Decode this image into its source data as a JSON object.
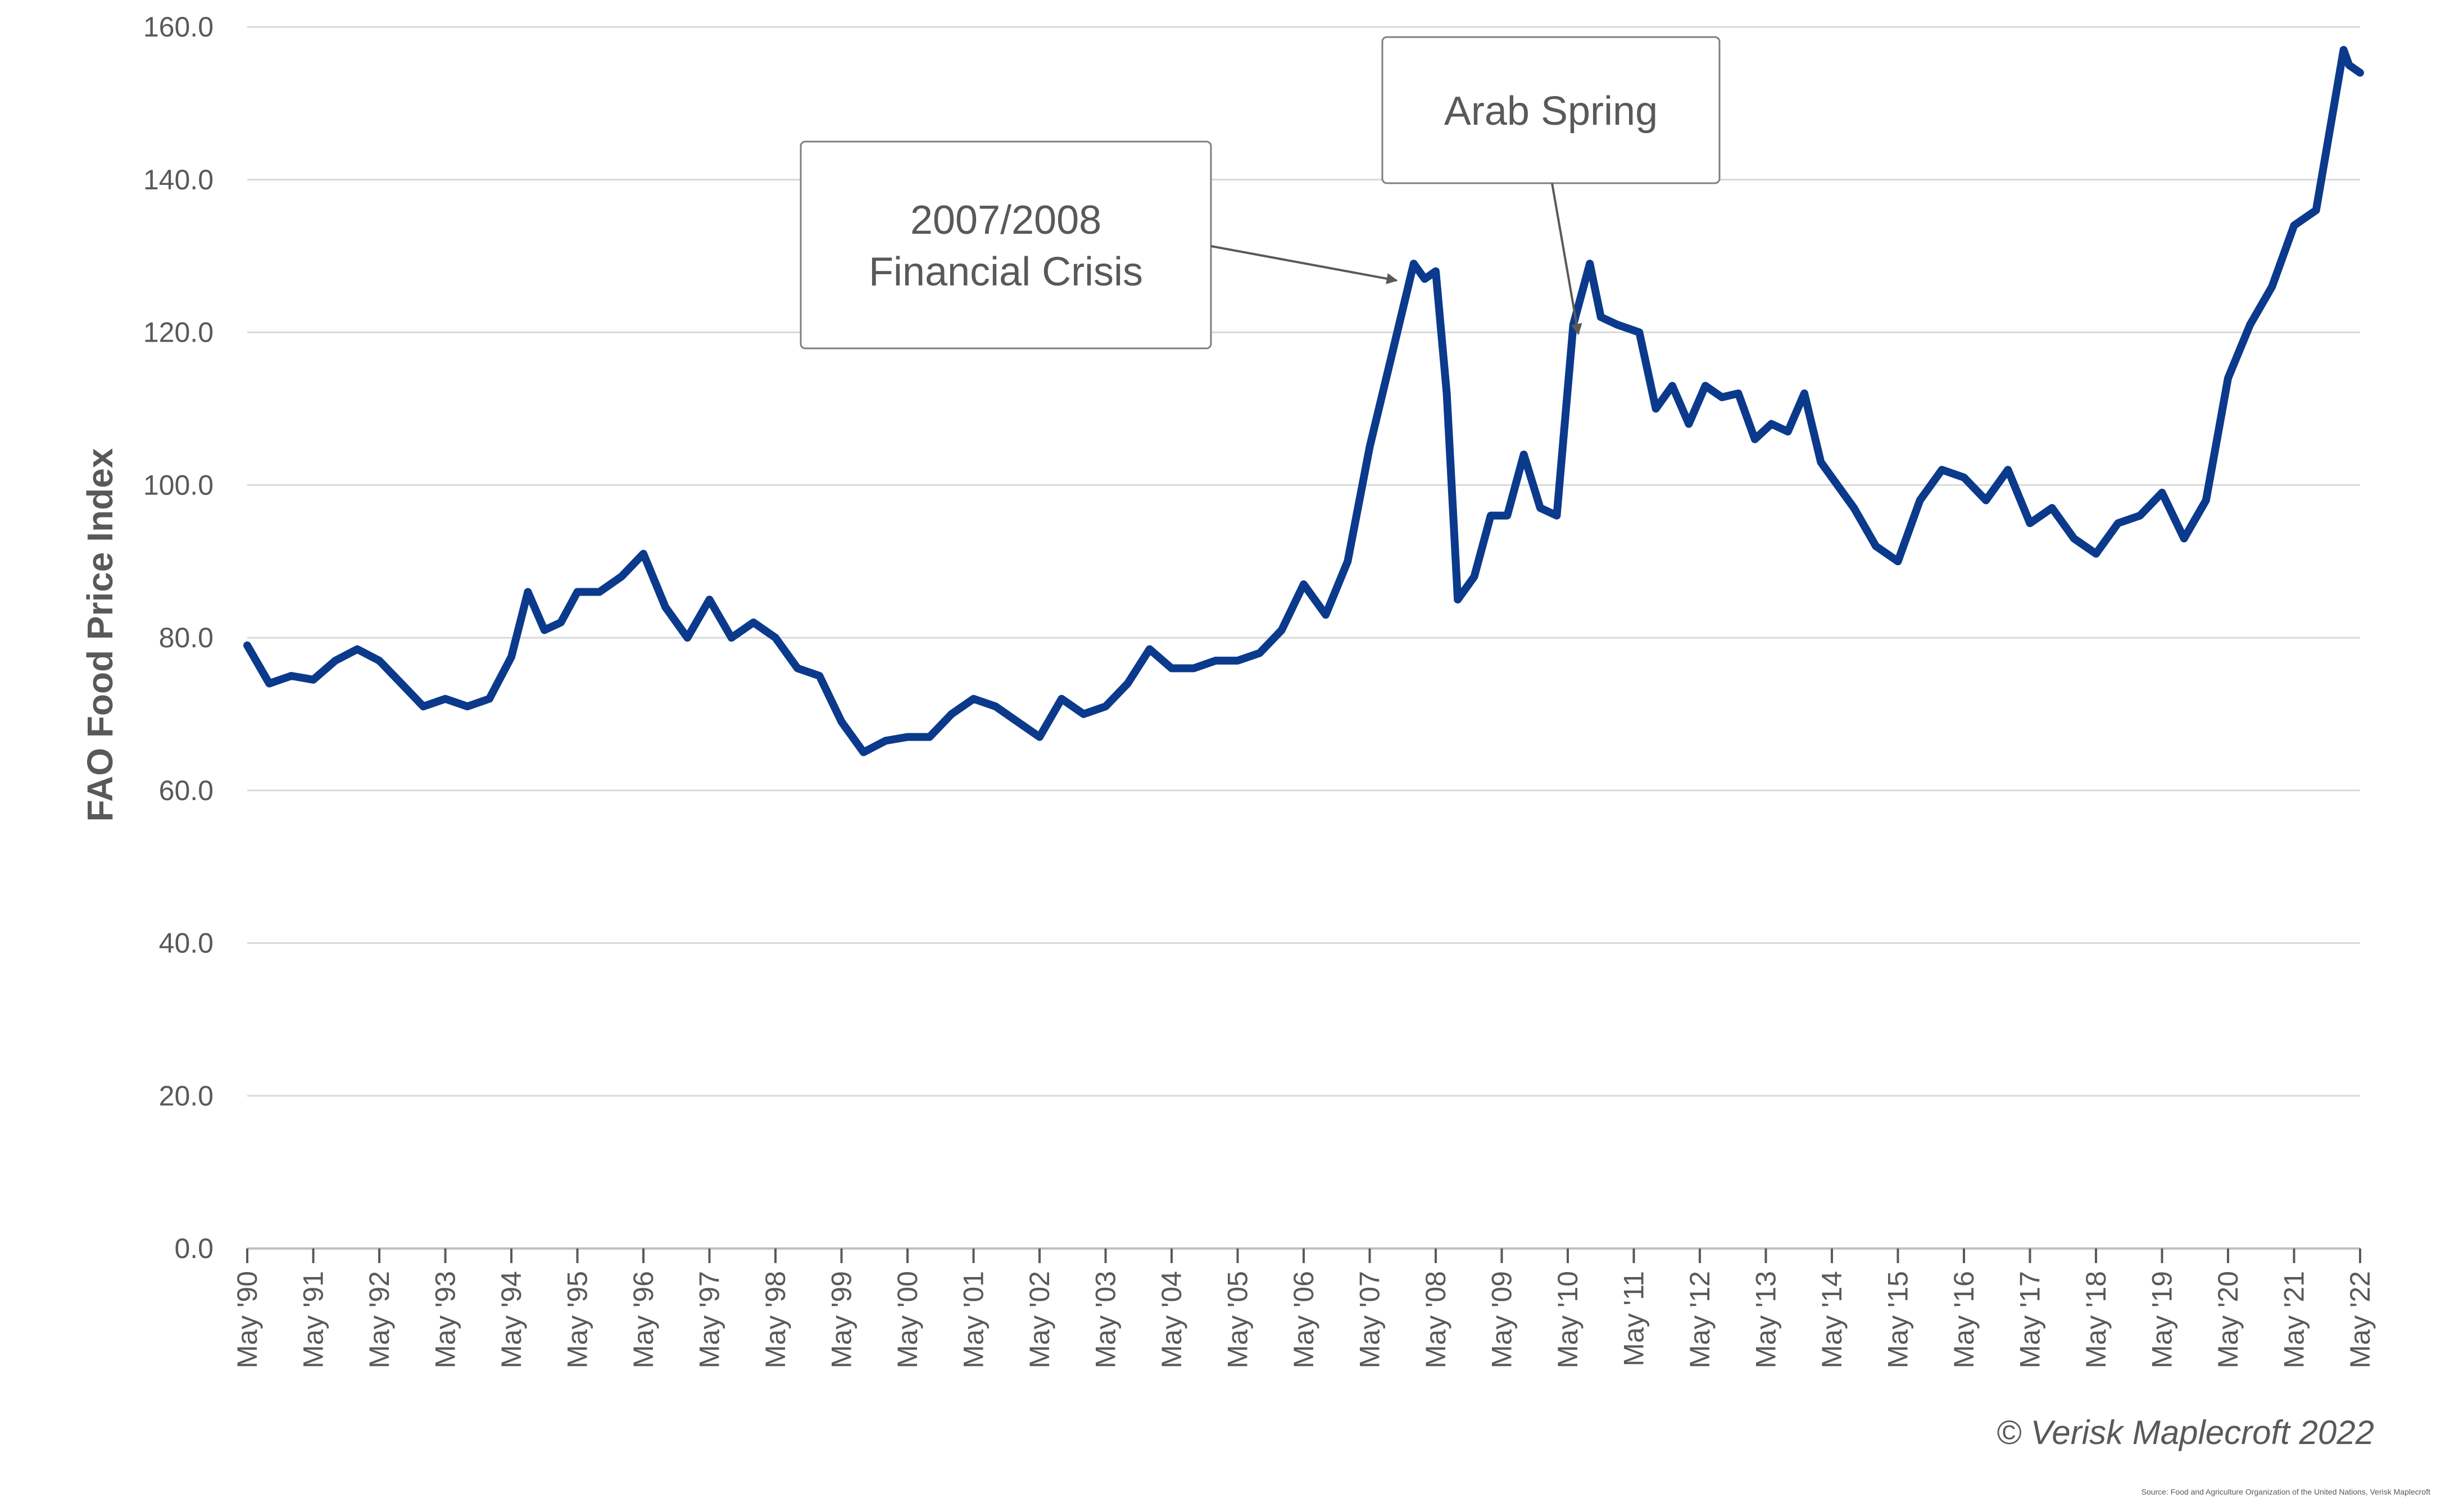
{
  "chart_data": {
    "type": "line",
    "title": "",
    "xlabel": "",
    "ylabel": "FAO Food Price Index",
    "ylim": [
      0,
      160
    ],
    "yticks": [
      "0.0",
      "20.0",
      "40.0",
      "60.0",
      "80.0",
      "100.0",
      "120.0",
      "140.0",
      "160.0"
    ],
    "grid": true,
    "legend": "none",
    "line_color": "#0b3a8c",
    "grid_color": "#d9d9d9",
    "xticks": [
      "May '90",
      "May '91",
      "May '92",
      "May '93",
      "May '94",
      "May '95",
      "May '96",
      "May '97",
      "May '98",
      "May '99",
      "May '00",
      "May '01",
      "May '02",
      "May '03",
      "May '04",
      "May '05",
      "May '06",
      "May '07",
      "May '08",
      "May '09",
      "May '10",
      "May '11",
      "May '12",
      "May '13",
      "May '14",
      "May '15",
      "May '16",
      "May '17",
      "May '18",
      "May '19",
      "May '20",
      "May '21",
      "May '22"
    ],
    "series": [
      {
        "x": [
          "1990-05",
          "1990-09",
          "1991-01",
          "1991-05",
          "1991-09",
          "1992-01",
          "1992-05",
          "1992-09",
          "1993-01",
          "1993-05",
          "1993-09",
          "1994-01",
          "1994-05",
          "1994-08",
          "1994-11",
          "1995-02",
          "1995-05",
          "1995-09",
          "1996-01",
          "1996-05",
          "1996-09",
          "1997-01",
          "1997-05",
          "1997-09",
          "1998-01",
          "1998-05",
          "1998-09",
          "1999-01",
          "1999-05",
          "1999-09",
          "2000-01",
          "2000-05",
          "2000-09",
          "2001-01",
          "2001-05",
          "2001-09",
          "2002-01",
          "2002-05",
          "2002-09",
          "2003-01",
          "2003-05",
          "2003-09",
          "2004-01",
          "2004-05",
          "2004-09",
          "2005-01",
          "2005-05",
          "2005-09",
          "2006-01",
          "2006-05",
          "2006-09",
          "2007-01",
          "2007-05",
          "2007-09",
          "2008-01",
          "2008-03",
          "2008-05",
          "2008-07",
          "2008-09",
          "2008-12",
          "2009-03",
          "2009-06",
          "2009-09",
          "2009-12",
          "2010-03",
          "2010-06",
          "2010-09",
          "2010-11",
          "2011-02",
          "2011-06",
          "2011-09",
          "2011-12",
          "2012-03",
          "2012-06",
          "2012-09",
          "2012-12",
          "2013-03",
          "2013-06",
          "2013-09",
          "2013-12",
          "2014-03",
          "2014-06",
          "2014-09",
          "2015-01",
          "2015-05",
          "2015-09",
          "2016-01",
          "2016-05",
          "2016-09",
          "2017-01",
          "2017-05",
          "2017-09",
          "2018-01",
          "2018-05",
          "2018-09",
          "2019-01",
          "2019-05",
          "2019-09",
          "2020-01",
          "2020-05",
          "2020-09",
          "2021-01",
          "2021-05",
          "2021-09",
          "2022-02",
          "2022-03",
          "2022-05"
        ],
        "values": [
          79,
          74,
          75,
          74.5,
          77,
          78.5,
          77,
          74,
          71,
          72,
          71,
          72,
          77.5,
          86,
          81,
          82,
          86,
          86,
          88,
          91,
          84,
          80,
          85,
          80,
          82,
          80,
          76,
          75,
          69,
          65,
          66.5,
          67,
          67,
          70,
          72,
          71,
          69,
          67,
          72,
          70,
          71,
          74,
          78.5,
          76,
          76,
          77,
          77,
          78,
          81,
          87,
          83,
          90,
          105,
          117,
          129,
          127,
          128,
          112,
          85,
          88,
          96,
          96,
          104,
          97,
          96,
          121,
          129,
          122,
          121,
          120,
          110,
          113,
          108,
          113,
          111.5,
          112,
          106,
          108,
          107,
          112,
          103,
          100,
          97,
          92,
          90,
          98,
          102,
          101,
          98,
          102,
          95,
          97,
          93,
          91,
          95,
          96,
          99,
          93,
          98,
          114,
          121,
          126,
          134,
          136,
          157,
          155,
          154
        ]
      }
    ],
    "annotations": [
      {
        "lines": [
          "2007/2008",
          "Financial Crisis"
        ],
        "target": "2008-02"
      },
      {
        "lines": [
          "Arab Spring"
        ],
        "target": "2010-11"
      }
    ],
    "copyright": "© Verisk Maplecroft 2022",
    "source": "Source: Food and Agriculture Organization of the United Nations, Verisk Maplecroft"
  }
}
